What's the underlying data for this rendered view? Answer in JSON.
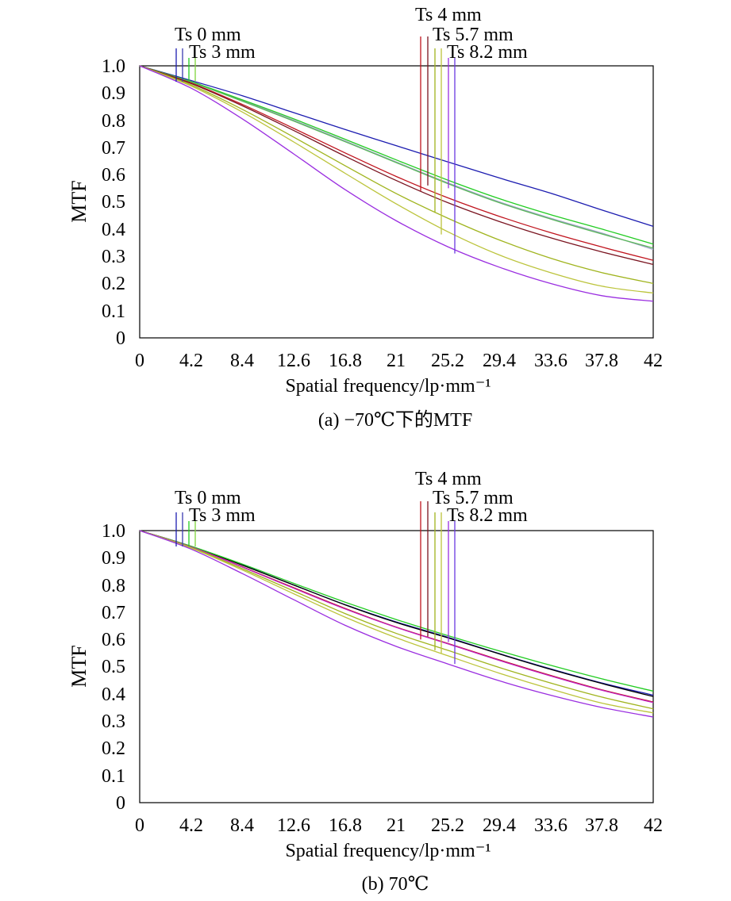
{
  "figure": {
    "captions": [
      "(a) −70℃下的MTF",
      "(b) 70℃"
    ]
  },
  "chart_data": [
    {
      "type": "line",
      "title": "",
      "caption": "(a) −70℃下的MTF",
      "xlabel": "Spatial frequency/lp·mm⁻¹",
      "ylabel": "MTF",
      "xlim": [
        0,
        42
      ],
      "ylim": [
        0,
        1
      ],
      "x_ticks": [
        "0",
        "4.2",
        "8.4",
        "12.6",
        "16.8",
        "21",
        "25.2",
        "29.4",
        "33.6",
        "37.8",
        "42"
      ],
      "y_ticks": [
        "0",
        "0.1",
        "0.2",
        "0.3",
        "0.4",
        "0.5",
        "0.6",
        "0.7",
        "0.8",
        "0.9",
        "1.0"
      ],
      "grid": false,
      "field_labels": [
        "Ts 0 mm",
        "Ts 3 mm",
        "Ts 4 mm",
        "Ts 5.7 mm",
        "Ts 8.2 mm"
      ],
      "series": [
        {
          "color": "#1c1cb0",
          "x": [
            0,
            4.2,
            8.4,
            12.6,
            16.8,
            21,
            25.2,
            29.4,
            33.6,
            37.8,
            42
          ],
          "values": [
            1.0,
            0.946,
            0.89,
            0.828,
            0.766,
            0.706,
            0.647,
            0.588,
            0.532,
            0.47,
            0.41
          ]
        },
        {
          "color": "#a0a0c8",
          "x": [
            0,
            4.2,
            8.4,
            12.6,
            16.8,
            21,
            25.2,
            29.4,
            33.6,
            37.8,
            42
          ],
          "values": [
            1.0,
            0.94,
            0.872,
            0.8,
            0.724,
            0.646,
            0.57,
            0.5,
            0.44,
            0.385,
            0.325
          ]
        },
        {
          "color": "#22cc22",
          "x": [
            0,
            4.2,
            8.4,
            12.6,
            16.8,
            21,
            25.2,
            29.4,
            33.6,
            37.8,
            42
          ],
          "values": [
            1.0,
            0.942,
            0.875,
            0.805,
            0.73,
            0.654,
            0.58,
            0.512,
            0.453,
            0.4,
            0.345
          ]
        },
        {
          "color": "#5ab85a",
          "x": [
            0,
            4.2,
            8.4,
            12.6,
            16.8,
            21,
            25.2,
            29.4,
            33.6,
            37.8,
            42
          ],
          "values": [
            1.0,
            0.94,
            0.87,
            0.797,
            0.721,
            0.644,
            0.567,
            0.497,
            0.437,
            0.382,
            0.33
          ]
        },
        {
          "color": "#c0141e",
          "x": [
            0,
            4.2,
            8.4,
            12.6,
            16.8,
            21,
            25.2,
            29.4,
            33.6,
            37.8,
            42
          ],
          "values": [
            1.0,
            0.937,
            0.858,
            0.77,
            0.68,
            0.593,
            0.515,
            0.447,
            0.387,
            0.334,
            0.285
          ]
        },
        {
          "color": "#7a1420",
          "x": [
            0,
            4.2,
            8.4,
            12.6,
            16.8,
            21,
            25.2,
            29.4,
            33.6,
            37.8,
            42
          ],
          "values": [
            1.0,
            0.935,
            0.853,
            0.762,
            0.668,
            0.578,
            0.497,
            0.428,
            0.368,
            0.316,
            0.27
          ]
        },
        {
          "color": "#a0b41e",
          "x": [
            0,
            4.2,
            8.4,
            12.6,
            16.8,
            21,
            25.2,
            29.4,
            33.6,
            37.8,
            42
          ],
          "values": [
            1.0,
            0.93,
            0.84,
            0.738,
            0.633,
            0.53,
            0.44,
            0.36,
            0.293,
            0.24,
            0.2
          ]
        },
        {
          "color": "#bcc43c",
          "x": [
            0,
            4.2,
            8.4,
            12.6,
            16.8,
            21,
            25.2,
            29.4,
            33.6,
            37.8,
            42
          ],
          "values": [
            1.0,
            0.926,
            0.83,
            0.72,
            0.605,
            0.492,
            0.39,
            0.305,
            0.24,
            0.19,
            0.165
          ]
        },
        {
          "color": "#9a2ee0",
          "x": [
            0,
            4.2,
            8.4,
            12.6,
            16.8,
            21,
            25.2,
            29.4,
            33.6,
            37.8,
            42
          ],
          "values": [
            1.0,
            0.918,
            0.805,
            0.676,
            0.545,
            0.43,
            0.335,
            0.26,
            0.2,
            0.155,
            0.135
          ]
        }
      ]
    },
    {
      "type": "line",
      "title": "",
      "caption": "(b) 70℃",
      "xlabel": "Spatial frequency/lp·mm⁻¹",
      "ylabel": "MTF",
      "xlim": [
        0,
        42
      ],
      "ylim": [
        0,
        1
      ],
      "x_ticks": [
        "0",
        "4.2",
        "8.4",
        "12.6",
        "16.8",
        "21",
        "25.2",
        "29.4",
        "33.6",
        "37.8",
        "42"
      ],
      "y_ticks": [
        "0",
        "0.1",
        "0.2",
        "0.3",
        "0.4",
        "0.5",
        "0.6",
        "0.7",
        "0.8",
        "0.9",
        "1.0"
      ],
      "grid": false,
      "field_labels": [
        "Ts 0 mm",
        "Ts 3 mm",
        "Ts 4 mm",
        "Ts 5.7 mm",
        "Ts 8.2 mm"
      ],
      "series": [
        {
          "color": "#1c1cb0",
          "x": [
            0,
            4.2,
            8.4,
            12.6,
            16.8,
            21,
            25.2,
            29.4,
            33.6,
            37.8,
            42
          ],
          "values": [
            1.0,
            0.942,
            0.874,
            0.8,
            0.728,
            0.664,
            0.608,
            0.548,
            0.492,
            0.44,
            0.395
          ]
        },
        {
          "color": "#000000",
          "x": [
            0,
            4.2,
            8.4,
            12.6,
            16.8,
            21,
            25.2,
            29.4,
            33.6,
            37.8,
            42
          ],
          "values": [
            1.0,
            0.942,
            0.873,
            0.8,
            0.727,
            0.662,
            0.606,
            0.547,
            0.49,
            0.438,
            0.39
          ]
        },
        {
          "color": "#22cc22",
          "x": [
            0,
            4.2,
            8.4,
            12.6,
            16.8,
            21,
            25.2,
            29.4,
            33.6,
            37.8,
            42
          ],
          "values": [
            1.0,
            0.943,
            0.877,
            0.806,
            0.737,
            0.673,
            0.614,
            0.558,
            0.505,
            0.455,
            0.41
          ]
        },
        {
          "color": "#c0141e",
          "x": [
            0,
            4.2,
            8.4,
            12.6,
            16.8,
            21,
            25.2,
            29.4,
            33.6,
            37.8,
            42
          ],
          "values": [
            1.0,
            0.94,
            0.867,
            0.79,
            0.714,
            0.645,
            0.585,
            0.525,
            0.468,
            0.415,
            0.37
          ]
        },
        {
          "color": "#c020c0",
          "x": [
            0,
            4.2,
            8.4,
            12.6,
            16.8,
            21,
            25.2,
            29.4,
            33.6,
            37.8,
            42
          ],
          "values": [
            1.0,
            0.94,
            0.866,
            0.788,
            0.712,
            0.644,
            0.584,
            0.523,
            0.466,
            0.413,
            0.368
          ]
        },
        {
          "color": "#a0b41e",
          "x": [
            0,
            4.2,
            8.4,
            12.6,
            16.8,
            21,
            25.2,
            29.4,
            33.6,
            37.8,
            42
          ],
          "values": [
            1.0,
            0.938,
            0.86,
            0.778,
            0.695,
            0.622,
            0.56,
            0.497,
            0.44,
            0.388,
            0.345
          ]
        },
        {
          "color": "#bcc43c",
          "x": [
            0,
            4.2,
            8.4,
            12.6,
            16.8,
            21,
            25.2,
            29.4,
            33.6,
            37.8,
            42
          ],
          "values": [
            1.0,
            0.936,
            0.855,
            0.768,
            0.682,
            0.606,
            0.54,
            0.476,
            0.418,
            0.366,
            0.33
          ]
        },
        {
          "color": "#9a2ee0",
          "x": [
            0,
            4.2,
            8.4,
            12.6,
            16.8,
            21,
            25.2,
            29.4,
            33.6,
            37.8,
            42
          ],
          "values": [
            1.0,
            0.932,
            0.842,
            0.746,
            0.652,
            0.574,
            0.51,
            0.448,
            0.395,
            0.35,
            0.315
          ]
        }
      ]
    }
  ],
  "markers": {
    "colors": [
      "#1c1cb0",
      "#3a3ab0",
      "#22cc22",
      "#7fd43c",
      "#c0141e",
      "#7a1420",
      "#a0b41e",
      "#bcc43c",
      "#9a2ee0",
      "#6a3ae0"
    ],
    "a_dropy": [
      null,
      null,
      null,
      null,
      0.54,
      0.56,
      0.46,
      0.38,
      0.55,
      0.31
    ],
    "b_dropy": [
      null,
      null,
      null,
      null,
      0.6,
      0.61,
      0.56,
      0.55,
      0.59,
      0.51
    ]
  }
}
